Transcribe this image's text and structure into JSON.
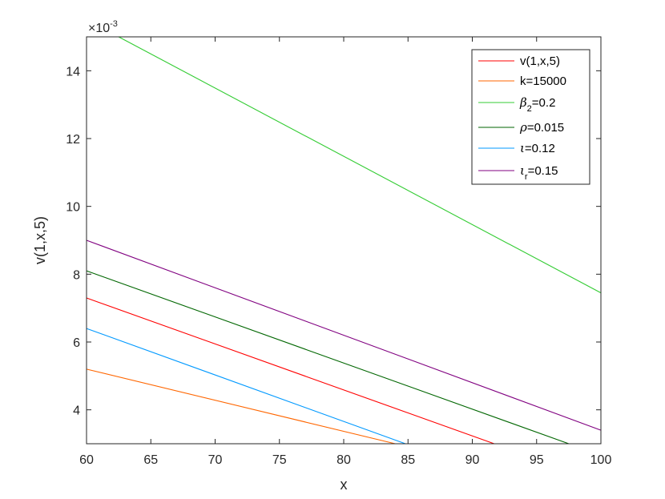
{
  "chart_data": {
    "type": "line",
    "title": "",
    "xlabel": "x",
    "ylabel": "v(1,x,5)",
    "xlim": [
      60,
      100
    ],
    "ylim": [
      0.003,
      0.015
    ],
    "xticks": [
      60,
      65,
      70,
      75,
      80,
      85,
      90,
      95,
      100
    ],
    "yticks": [
      4,
      6,
      8,
      10,
      12,
      14
    ],
    "y_exponent_label": {
      "base": "×10",
      "exp": "-3"
    },
    "grid": false,
    "legend_position": "top-right",
    "series": [
      {
        "name": "v(1,x,5)",
        "legend": {
          "sym": "",
          "sub": "",
          "rest": "v(1,x,5)"
        },
        "color": "#ff0000",
        "x": [
          60,
          91.7
        ],
        "y": [
          0.0073,
          0.003
        ]
      },
      {
        "name": "k=15000",
        "legend": {
          "sym": "",
          "sub": "",
          "rest": "k=15000"
        },
        "color": "#ff6600",
        "x": [
          60,
          84
        ],
        "y": [
          0.0052,
          0.003
        ]
      },
      {
        "name": "β2=0.2",
        "legend": {
          "sym": "β",
          "sub": "2",
          "rest": "=0.2"
        },
        "color": "#33cc33",
        "x": [
          62.5,
          100
        ],
        "y": [
          0.015,
          0.00745
        ]
      },
      {
        "name": "ρ=0.015",
        "legend": {
          "sym": "ρ",
          "sub": "",
          "rest": "=0.015"
        },
        "color": "#006600",
        "x": [
          60,
          97.5
        ],
        "y": [
          0.0081,
          0.003
        ]
      },
      {
        "name": "ι=0.12",
        "legend": {
          "sym": "ι",
          "sub": "",
          "rest": "=0.12"
        },
        "color": "#0099ff",
        "x": [
          60,
          84.8
        ],
        "y": [
          0.0064,
          0.003
        ]
      },
      {
        "name": "ιr=0.15",
        "legend": {
          "sym": "ι",
          "sub": "r",
          "rest": "=0.15"
        },
        "color": "#800080",
        "x": [
          60,
          100
        ],
        "y": [
          0.009,
          0.0034
        ]
      }
    ]
  }
}
